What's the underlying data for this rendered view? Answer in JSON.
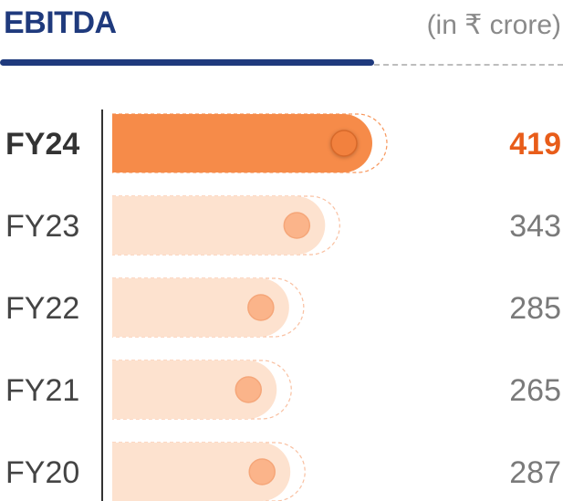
{
  "header": {
    "title": "EBITDA",
    "unit": "(in ₹ crore)"
  },
  "colors": {
    "title": "#1f3a7d",
    "highlight_bar": "#f68b49",
    "highlight_text": "#e85d1a",
    "bar": "#fde2cf",
    "dot": "#fbb48a",
    "label": "#444444",
    "value": "#7a7a7a"
  },
  "chart_data": {
    "type": "bar",
    "orientation": "horizontal",
    "categories": [
      "FY24",
      "FY23",
      "FY22",
      "FY21",
      "FY20"
    ],
    "values": [
      419,
      343,
      285,
      265,
      287
    ],
    "value_labels": [
      "419",
      "343",
      "285",
      "265",
      "287"
    ],
    "highlight": "FY24",
    "title": "EBITDA",
    "unit": "(in ₹ crore)",
    "xlabel": "",
    "ylabel": "",
    "grid": false,
    "legend": "none"
  }
}
